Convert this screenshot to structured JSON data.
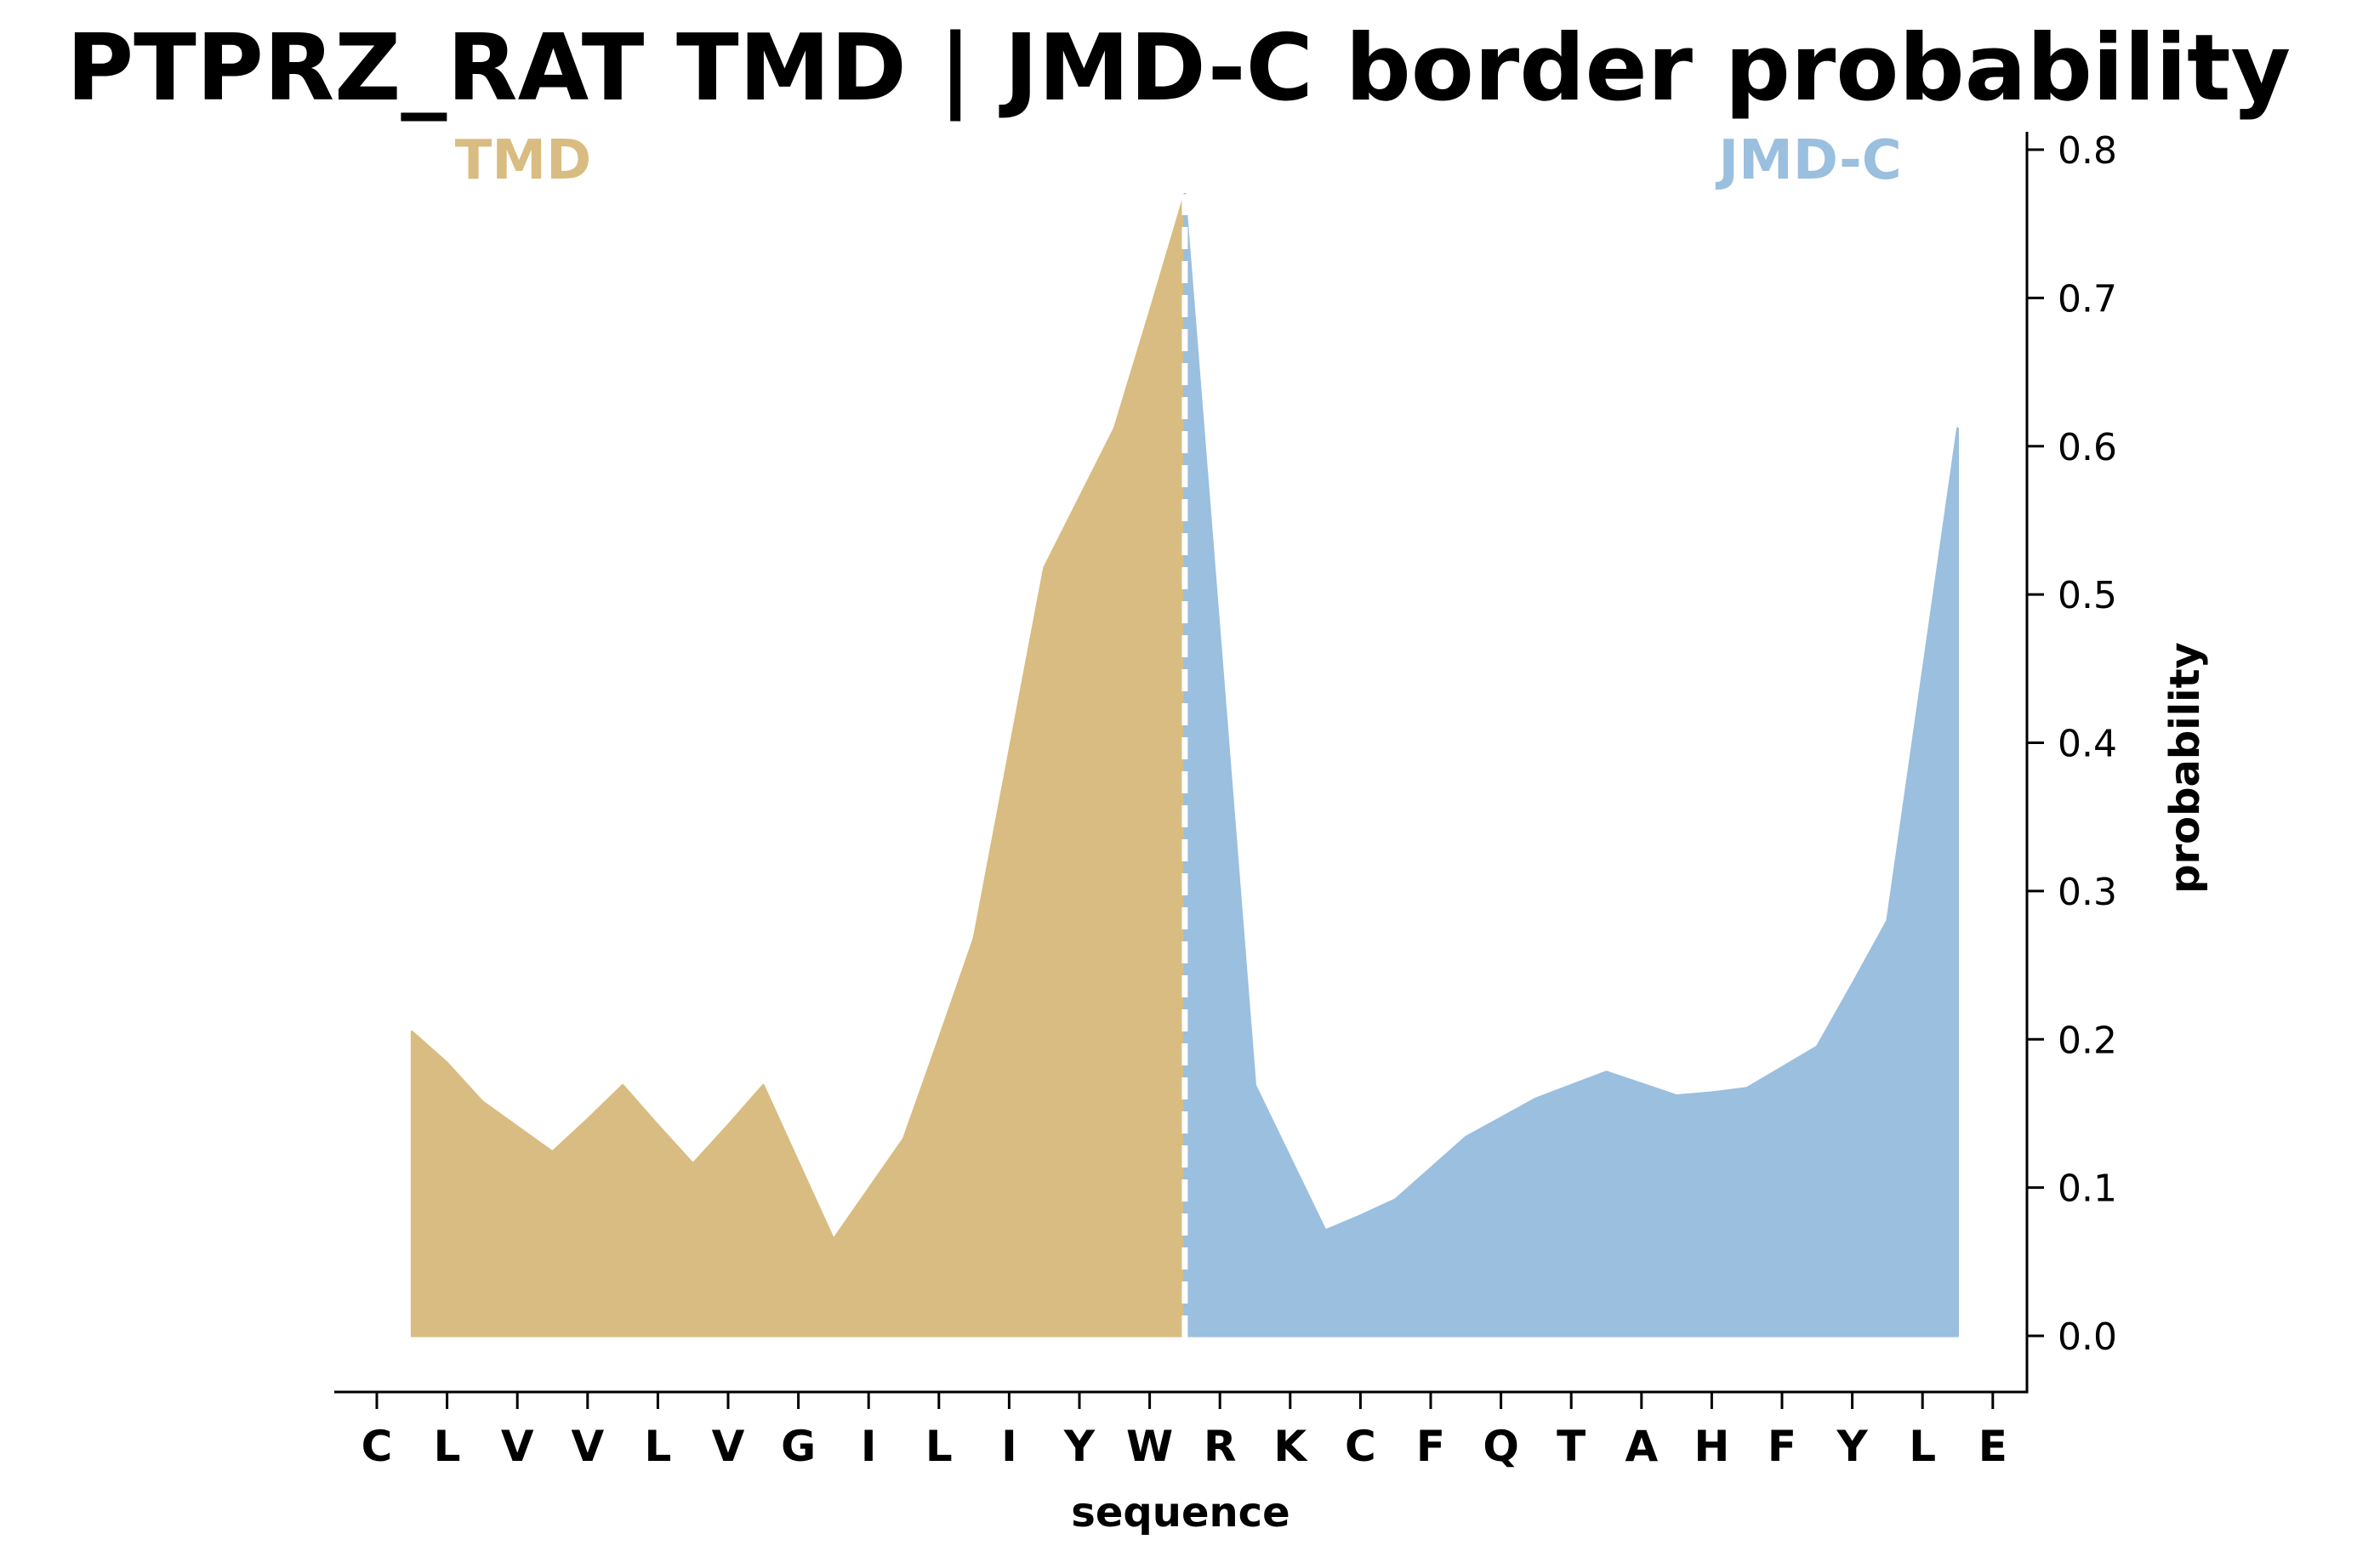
{
  "chart_data": {
    "type": "area",
    "title": "PTPRZ_RAT TMD | JMD-C border probability",
    "xlabel": "sequence",
    "ylabel": "probability",
    "x_tick_labels": [
      "C",
      "L",
      "V",
      "V",
      "L",
      "V",
      "G",
      "I",
      "L",
      "I",
      "Y",
      "W",
      "R",
      "K",
      "C",
      "F",
      "Q",
      "T",
      "A",
      "H",
      "F",
      "Y",
      "L",
      "E"
    ],
    "y_ticks": [
      "0.0",
      "0.1",
      "0.2",
      "0.3",
      "0.4",
      "0.5",
      "0.6",
      "0.7",
      "0.8"
    ],
    "ylim": [
      -0.038,
      0.81
    ],
    "y_axis_side": "right",
    "grid": false,
    "border_position": 11.5,
    "regions": [
      {
        "name": "TMD",
        "color": "#d9bc81"
      },
      {
        "name": "JMD-C",
        "color": "#9abfdf"
      }
    ],
    "series": [
      {
        "region": "TMD",
        "x": [
          0.5,
          1,
          1.5,
          2,
          2.5,
          3,
          3.5,
          4,
          4.5,
          5,
          5.5,
          6,
          6.5,
          7,
          7.5,
          8,
          8.5,
          9,
          9.5,
          10,
          10.5,
          11,
          11.5
        ],
        "y": [
          0.205,
          0.184,
          0.158,
          0.141,
          0.124,
          0.146,
          0.169,
          0.142,
          0.116,
          0.142,
          0.169,
          0.117,
          0.065,
          0.099,
          0.133,
          0.2,
          0.268,
          0.393,
          0.518,
          0.565,
          0.612,
          0.69,
          0.77
        ]
      },
      {
        "region": "JMD-C",
        "x": [
          11.5,
          12,
          12.5,
          13,
          13.5,
          14,
          14.5,
          15,
          15.5,
          16,
          16.5,
          17,
          17.5,
          18,
          18.5,
          19,
          19.5,
          20,
          20.5,
          21,
          21.5,
          22,
          22.5
        ],
        "y": [
          0.77,
          0.47,
          0.169,
          0.12,
          0.071,
          0.081,
          0.092,
          0.113,
          0.134,
          0.147,
          0.16,
          0.169,
          0.178,
          0.17,
          0.162,
          0.164,
          0.167,
          0.181,
          0.195,
          0.237,
          0.28,
          0.446,
          0.612
        ]
      }
    ]
  }
}
